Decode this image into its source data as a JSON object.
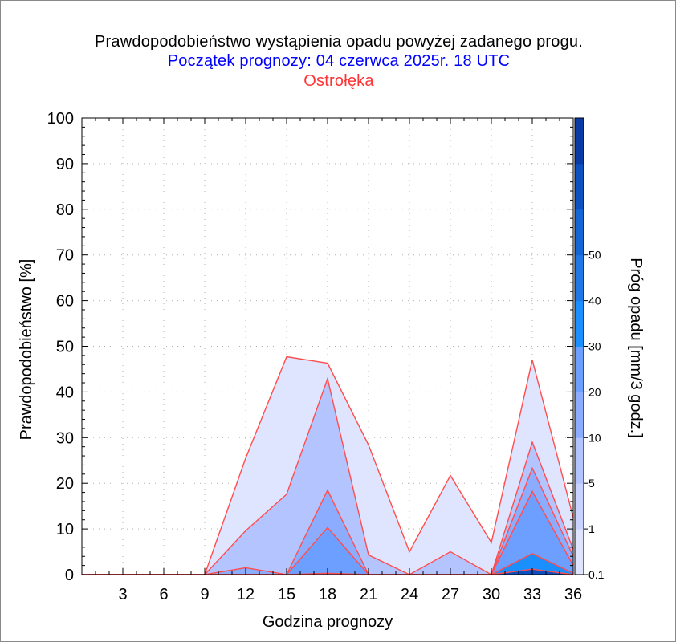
{
  "title": "Prawdopodobieństwo wystąpienia opadu powyżej zadanego progu.",
  "subtitle": "Początek prognozy: 04 czerwca 2025r. 18 UTC",
  "location": "Ostrołęka",
  "chart_data": {
    "type": "area",
    "xlabel": "Godzina prognozy",
    "ylabel": "Prawdopodobieństwo [%]",
    "colorbar_label": "Próg opadu [mm/3 godz.]",
    "x": [
      0,
      3,
      6,
      9,
      12,
      15,
      18,
      21,
      24,
      27,
      30,
      33,
      36
    ],
    "xticks": [
      "3",
      "6",
      "9",
      "12",
      "15",
      "18",
      "21",
      "24",
      "27",
      "30",
      "33",
      "36"
    ],
    "xlim": [
      0,
      36
    ],
    "ylim": [
      0,
      100
    ],
    "yticks": [
      "0",
      "10",
      "20",
      "30",
      "40",
      "50",
      "60",
      "70",
      "80",
      "90",
      "100"
    ],
    "grid": true,
    "colorbar": {
      "levels": [
        0.1,
        1,
        5,
        10,
        20,
        30,
        40,
        50
      ],
      "tick_labels": [
        "0.1",
        "1",
        "5",
        "10",
        "20",
        "30",
        "40",
        "50"
      ],
      "colors": [
        "#dfe5ff",
        "#c9d3ff",
        "#b3c4ff",
        "#8cadff",
        "#6c9fff",
        "#1a8fff",
        "#1f78e6",
        "#1466d6",
        "#0c50c2",
        "#0a3aa5"
      ]
    },
    "outline_color": "#ff4d4d",
    "series": [
      {
        "threshold": 0.1,
        "color": "#dfe5ff",
        "values": [
          0,
          0,
          0,
          0,
          25.5,
          47.7,
          46.3,
          28.4,
          5,
          21.7,
          7,
          47,
          12.5
        ]
      },
      {
        "threshold": 1,
        "color": "#b3c4ff",
        "values": [
          0,
          0,
          0,
          0,
          9.6,
          17.6,
          42.9,
          4.3,
          0,
          5,
          0,
          29,
          5.5
        ]
      },
      {
        "threshold": 5,
        "color": "#8cadff",
        "values": [
          0,
          0,
          0,
          0,
          1.5,
          0,
          18.5,
          0,
          0,
          0,
          0,
          23.3,
          4
        ]
      },
      {
        "threshold": 10,
        "color": "#6c9fff",
        "values": [
          0,
          0,
          0,
          0,
          0,
          0,
          10.3,
          0,
          0,
          0,
          0,
          18.2,
          2
        ]
      },
      {
        "threshold": 20,
        "color": "#1a8fff",
        "values": [
          0,
          0,
          0,
          0,
          0,
          0,
          0.3,
          0,
          0,
          0,
          0,
          4.6,
          0.3
        ]
      },
      {
        "threshold": 30,
        "color": "#0c50c2",
        "values": [
          0,
          0,
          0,
          0,
          0,
          0,
          0,
          0,
          0,
          0,
          0,
          1.2,
          0
        ]
      }
    ]
  }
}
